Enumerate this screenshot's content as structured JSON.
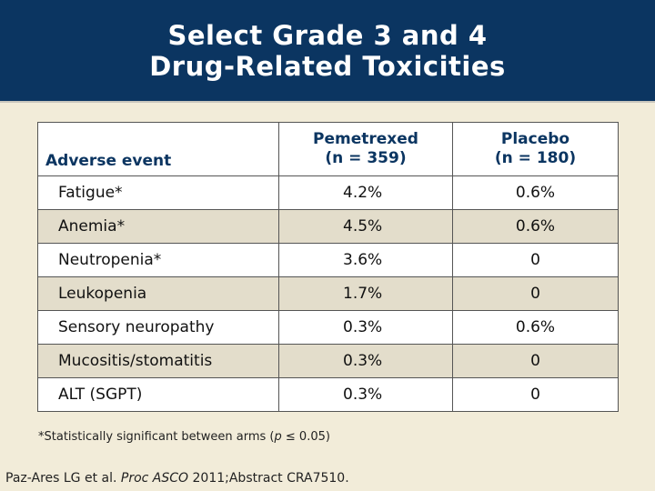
{
  "slide": {
    "title_line1": "Select Grade 3 and 4",
    "title_line2": "Drug-Related Toxicities"
  },
  "table": {
    "headers": {
      "adverse_event": "Adverse event",
      "pemetrexed_name": "Pemetrexed",
      "pemetrexed_n": "(n = 359)",
      "placebo_name": "Placebo",
      "placebo_n": "(n = 180)"
    },
    "rows": [
      {
        "event": "Fatigue*",
        "pemetrexed": "4.2%",
        "placebo": "0.6%"
      },
      {
        "event": "Anemia*",
        "pemetrexed": "4.5%",
        "placebo": "0.6%"
      },
      {
        "event": "Neutropenia*",
        "pemetrexed": "3.6%",
        "placebo": "0"
      },
      {
        "event": "Leukopenia",
        "pemetrexed": "1.7%",
        "placebo": "0"
      },
      {
        "event": "Sensory neuropathy",
        "pemetrexed": "0.3%",
        "placebo": "0.6%"
      },
      {
        "event": "Mucositis/stomatitis",
        "pemetrexed": "0.3%",
        "placebo": "0"
      },
      {
        "event": "ALT (SGPT)",
        "pemetrexed": "0.3%",
        "placebo": "0"
      }
    ]
  },
  "footnote": {
    "before": "*Statistically significant between arms (",
    "italic": "p",
    "after": " ≤ 0.05)"
  },
  "citation": {
    "authors": "Paz-Ares LG et al. ",
    "journal": "Proc ASCO",
    "rest": " 2011;Abstract CRA7510."
  },
  "colors": {
    "header_bg": "#0b3561",
    "page_bg": "#f2ecd9",
    "row_alt": "#e3ddcb",
    "header_text": "#0b3561"
  }
}
